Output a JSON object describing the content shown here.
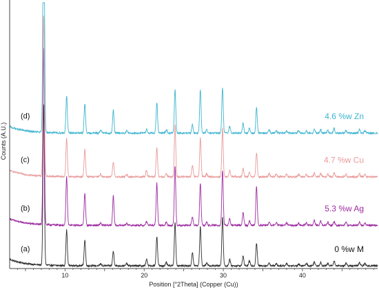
{
  "chart_data": {
    "type": "line",
    "xlabel": "Position [°2Theta] (Copper (Cu))",
    "ylabel": "Counts (A.U.)",
    "xlim": [
      3,
      49.5
    ],
    "x_ticks": [
      10,
      20,
      30,
      40
    ],
    "grid": false,
    "peak_positions": [
      7.3,
      10.2,
      12.5,
      14.5,
      16.1,
      17.8,
      20.3,
      21.6,
      22.8,
      23.9,
      26.1,
      27.1,
      27.9,
      29.9,
      30.8,
      32.5,
      33.3,
      34.2,
      35.8,
      36.7,
      38.0,
      39.5,
      40.5,
      41.5,
      42.3,
      43.2,
      44.0,
      45.5,
      47.2,
      47.9
    ],
    "series": [
      {
        "name": "0 %w M",
        "letter": "(a)",
        "color": "#2b2b2b",
        "baseline": 0.0,
        "intensities": [
          100,
          22,
          16,
          1.2,
          9,
          1.5,
          4,
          18,
          2,
          27,
          8,
          24,
          2,
          30,
          4,
          6,
          3,
          14,
          2,
          1.5,
          1.5,
          1,
          1.5,
          2.5,
          2,
          1.5,
          3,
          1.5,
          2,
          1.5
        ]
      },
      {
        "name": "5.3 %w Ag",
        "letter": "(b)",
        "color": "#9c2a9f",
        "baseline": 25,
        "intensities": [
          110,
          30,
          20,
          1.5,
          18,
          1.5,
          2.5,
          26,
          2,
          37,
          5,
          26,
          2,
          34,
          4,
          8,
          3,
          24,
          2,
          2,
          1.5,
          1.5,
          1.5,
          3,
          2.5,
          2,
          2.5,
          2,
          2,
          1.5
        ]
      },
      {
        "name": "4.7 %w Cu",
        "letter": "(c)",
        "color": "#e89a9a",
        "baseline": 55,
        "intensities": [
          100,
          24,
          17,
          1.5,
          9,
          1.5,
          4,
          18,
          2,
          32,
          7,
          24,
          2,
          30,
          4,
          5,
          3,
          15,
          2,
          1.5,
          1.5,
          1.5,
          1.5,
          2.5,
          2,
          1.5,
          2.5,
          1.5,
          2,
          1.5
        ]
      },
      {
        "name": "4.6 %w Zn",
        "letter": "(d)",
        "color": "#3db4cf",
        "baseline": 82,
        "intensities": [
          200,
          23,
          18,
          2,
          14,
          1.5,
          2.5,
          19,
          2,
          27,
          5,
          27,
          2,
          28,
          4,
          6,
          3,
          16,
          2,
          1.5,
          1.5,
          1.5,
          1.5,
          2.5,
          2,
          1.5,
          3,
          1.5,
          2.5,
          1.5
        ]
      }
    ]
  }
}
